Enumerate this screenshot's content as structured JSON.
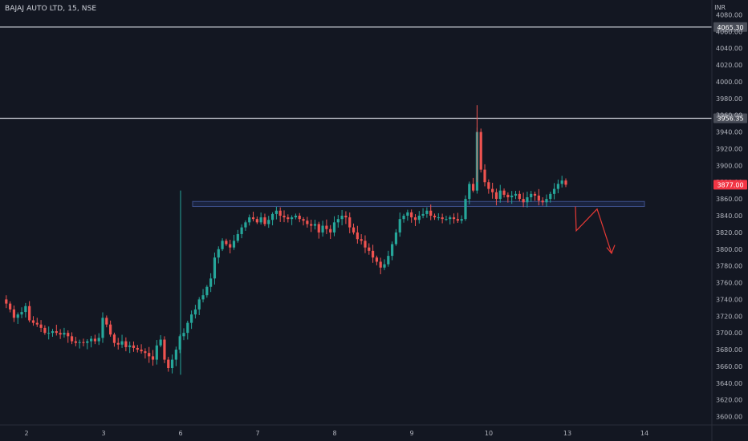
{
  "header": {
    "symbol": "BAJAJ AUTO LTD, 15, NSE",
    "currency": "INR"
  },
  "colors": {
    "background": "#131722",
    "up": "#26a69a",
    "down": "#ef5350",
    "axis_text": "#b2b5be",
    "level_line": "#d1d4dc",
    "zone_fill": "#1e2a4a",
    "zone_border": "#3d4f8a",
    "arrow": "#e53935",
    "price_tag_bg": "#f23645"
  },
  "chart_data": {
    "type": "candlestick",
    "y_axis": {
      "range": [
        3590,
        4090
      ],
      "ticks": [
        3600,
        3620,
        3640,
        3660,
        3680,
        3700,
        3720,
        3740,
        3760,
        3780,
        3800,
        3820,
        3840,
        3860,
        3880,
        3900,
        3920,
        3940,
        3960,
        3980,
        4000,
        4020,
        4040,
        4060,
        4080
      ],
      "tick_labels": [
        "3600.00",
        "3620.00",
        "3640.00",
        "3660.00",
        "3680.00",
        "3700.00",
        "3720.00",
        "3740.00",
        "3760.00",
        "3780.00",
        "3800.00",
        "3820.00",
        "3840.00",
        "3860.00",
        "3880.00",
        "3900.00",
        "3920.00",
        "3940.00",
        "3960.00",
        "3980.00",
        "4000.00",
        "4020.00",
        "4040.00",
        "4060.00",
        "4080.00"
      ]
    },
    "x_axis": {
      "day_labels": [
        "2",
        "3",
        "6",
        "7",
        "8",
        "9",
        "10",
        "13",
        "14"
      ]
    },
    "horizontal_levels": [
      {
        "value": 4065.3,
        "label": "4065.30"
      },
      {
        "value": 3956.35,
        "label": "3956.35"
      }
    ],
    "zone": {
      "from": 3851,
      "to": 3857
    },
    "last_price": {
      "value": 3877.0,
      "label": "3877.00"
    },
    "candle_path": [
      3740,
      3735,
      3728,
      3718,
      3722,
      3725,
      3732,
      3715,
      3712,
      3710,
      3706,
      3700,
      3700,
      3702,
      3700,
      3698,
      3700,
      3696,
      3690,
      3688,
      3689,
      3688,
      3690,
      3693,
      3690,
      3694,
      3718,
      3710,
      3698,
      3688,
      3686,
      3690,
      3683,
      3685,
      3682,
      3680,
      3678,
      3676,
      3672,
      3668,
      3685,
      3692,
      3668,
      3658,
      3668,
      3680,
      3696,
      3700,
      3712,
      3722,
      3728,
      3740,
      3745,
      3755,
      3765,
      3790,
      3800,
      3810,
      3806,
      3802,
      3810,
      3818,
      3826,
      3832,
      3838,
      3836,
      3832,
      3838,
      3830,
      3835,
      3842,
      3846,
      3840,
      3838,
      3836,
      3838,
      3840,
      3836,
      3834,
      3830,
      3828,
      3830,
      3820,
      3828,
      3824,
      3820,
      3832,
      3836,
      3840,
      3838,
      3826,
      3820,
      3812,
      3810,
      3802,
      3798,
      3790,
      3785,
      3778,
      3782,
      3792,
      3806,
      3820,
      3836,
      3840,
      3844,
      3838,
      3835,
      3840,
      3842,
      3846,
      3840,
      3838,
      3838,
      3836,
      3836,
      3838,
      3836,
      3834,
      3836,
      3860,
      3878,
      3870,
      3940,
      3895,
      3880,
      3872,
      3868,
      3860,
      3870,
      3865,
      3862,
      3864,
      3866,
      3860,
      3856,
      3862,
      3866,
      3864,
      3858,
      3856,
      3860,
      3866,
      3872,
      3878,
      3882,
      3877
    ]
  }
}
